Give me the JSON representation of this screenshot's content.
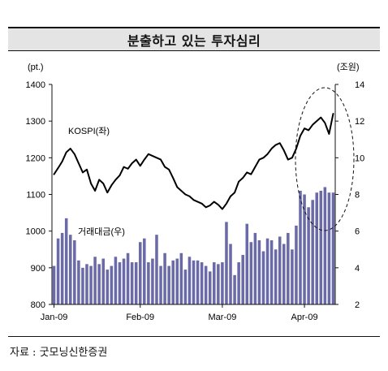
{
  "header": {
    "title": "분출하고 있는 투자심리"
  },
  "source": "자료 : 굿모닝신한증권",
  "colors": {
    "bar_fill": "#6b6aa8",
    "line": "#000000",
    "title_bg": "#e4e4e4"
  },
  "chart_data": {
    "type": "bar+line",
    "left_axis": {
      "unit_label": "(pt.)",
      "range": [
        800,
        1400
      ],
      "ticks": [
        800,
        900,
        1000,
        1100,
        1200,
        1300,
        1400
      ]
    },
    "right_axis": {
      "unit_label": "(조원)",
      "range": [
        2,
        14
      ],
      "ticks": [
        2,
        4,
        6,
        8,
        10,
        12,
        14
      ]
    },
    "x_ticks": [
      "Jan-09",
      "Feb-09",
      "Mar-09",
      "Apr-09"
    ],
    "grid": false,
    "series": [
      {
        "name": "KOSPI(좌)",
        "type": "line",
        "axis": "left",
        "values": [
          1155,
          1172,
          1190,
          1215,
          1225,
          1210,
          1185,
          1160,
          1168,
          1130,
          1110,
          1140,
          1130,
          1105,
          1125,
          1140,
          1152,
          1175,
          1170,
          1185,
          1195,
          1178,
          1195,
          1210,
          1205,
          1200,
          1195,
          1175,
          1168,
          1145,
          1120,
          1110,
          1100,
          1095,
          1085,
          1080,
          1075,
          1065,
          1070,
          1080,
          1072,
          1060,
          1075,
          1095,
          1105,
          1135,
          1145,
          1160,
          1155,
          1175,
          1195,
          1200,
          1210,
          1225,
          1235,
          1240,
          1220,
          1195,
          1200,
          1225,
          1260,
          1280,
          1275,
          1290,
          1300,
          1310,
          1295,
          1265,
          1320
        ]
      },
      {
        "name": "거래대금(우)",
        "type": "bar",
        "axis": "right",
        "values": [
          4.1,
          5.6,
          5.9,
          6.7,
          5.8,
          5.5,
          4.4,
          4.0,
          4.2,
          4.1,
          4.6,
          4.2,
          4.5,
          3.9,
          4.1,
          4.6,
          4.3,
          4.5,
          4.8,
          4.3,
          4.3,
          5.4,
          5.6,
          4.3,
          4.5,
          5.8,
          4.1,
          4.8,
          4.1,
          4.4,
          4.5,
          4.8,
          3.9,
          4.6,
          4.4,
          4.4,
          4.3,
          4.1,
          3.8,
          4.3,
          4.2,
          4.3,
          6.5,
          5.3,
          3.6,
          4.3,
          4.7,
          6.4,
          5.4,
          5.9,
          5.5,
          4.9,
          5.6,
          5.5,
          5.0,
          5.7,
          5.3,
          5.9,
          5.0,
          6.3,
          8.2,
          8.0,
          7.3,
          7.7,
          8.1,
          8.2,
          8.4,
          8.1,
          8.1
        ]
      }
    ],
    "annotation": "dashed ellipse highlighting April 2009 surge"
  }
}
